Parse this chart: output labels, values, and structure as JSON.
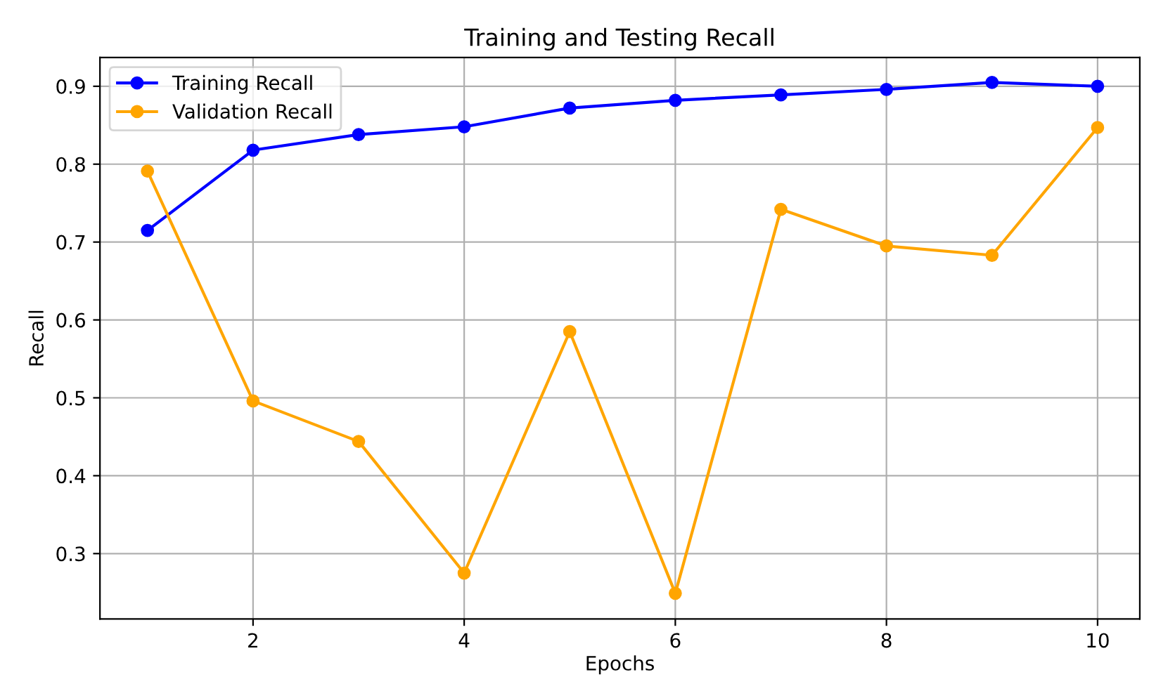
{
  "chart_data": {
    "type": "line",
    "title": "Training and Testing Recall",
    "xlabel": "Epochs",
    "ylabel": "Recall",
    "x": [
      1,
      2,
      3,
      4,
      5,
      6,
      7,
      8,
      9,
      10
    ],
    "series": [
      {
        "name": "Training Recall",
        "color": "#0000ff",
        "values": [
          0.715,
          0.818,
          0.838,
          0.848,
          0.872,
          0.882,
          0.889,
          0.896,
          0.905,
          0.9
        ]
      },
      {
        "name": "Validation Recall",
        "color": "#ffa500",
        "values": [
          0.791,
          0.496,
          0.444,
          0.275,
          0.585,
          0.249,
          0.742,
          0.695,
          0.683,
          0.847
        ]
      }
    ],
    "xlim": [
      0.55,
      10.4
    ],
    "ylim": [
      0.216,
      0.937
    ],
    "xticks": [
      2,
      4,
      6,
      8,
      10
    ],
    "yticks": [
      0.3,
      0.4,
      0.5,
      0.6,
      0.7,
      0.8,
      0.9
    ],
    "grid": true,
    "legend": "top left",
    "marker": "circle",
    "line_style": "solid"
  }
}
